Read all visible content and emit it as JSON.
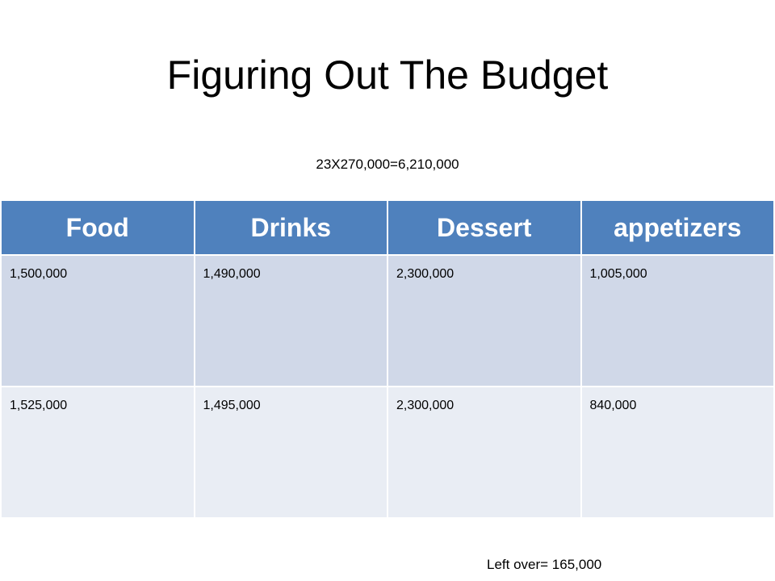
{
  "title": "Figuring Out The Budget",
  "formula": "23X270,000=6,210,000",
  "table": {
    "headers": [
      "Food",
      "Drinks",
      "Dessert",
      "appetizers"
    ],
    "rows": [
      [
        "1,500,000",
        "1,490,000",
        "2,300,000",
        "1,005,000"
      ],
      [
        "1,525,000",
        "1,495,000",
        "2,300,000",
        "840,000"
      ]
    ]
  },
  "leftover": "Left over= 165,000",
  "colors": {
    "header_bg": "#4f81bd",
    "row_odd_bg": "#d0d8e8",
    "row_even_bg": "#e9edf4"
  }
}
